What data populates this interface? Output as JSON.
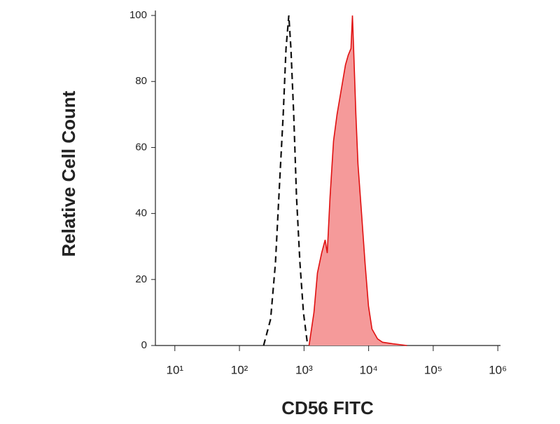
{
  "chart_data": {
    "type": "line",
    "xlabel": "CD56 FITC",
    "ylabel": "Relative Cell Count",
    "xscale": "log",
    "xlim": [
      5,
      1100000
    ],
    "ylim": [
      0,
      101.5
    ],
    "xticks": [
      {
        "value": 10,
        "label": "10¹"
      },
      {
        "value": 100,
        "label": "10²"
      },
      {
        "value": 1000,
        "label": "10³"
      },
      {
        "value": 10000,
        "label": "10⁴"
      },
      {
        "value": 100000,
        "label": "10⁵"
      },
      {
        "value": 1000000,
        "label": "10⁶"
      }
    ],
    "yticks": [
      0,
      20,
      40,
      60,
      80,
      100
    ],
    "series": [
      {
        "color": "#111111",
        "line_style": "dashed",
        "filled": false,
        "x": [
          237,
          304,
          361,
          420,
          476,
          526,
          581,
          626,
          692,
          764,
          865,
          980,
          1138
        ],
        "values": [
          0,
          8,
          25,
          50,
          70,
          90,
          100,
          90,
          70,
          45,
          25,
          10,
          0
        ]
      },
      {
        "color": "#e01010",
        "fill_color": "#f59a9a",
        "line_style": "solid",
        "filled": true,
        "x": [
          1197,
          1425,
          1614,
          1875,
          2124,
          2286,
          2529,
          2864,
          3243,
          3581,
          3956,
          4375,
          4831,
          5333,
          5610,
          5902,
          6353,
          6839,
          7762,
          8790,
          9954,
          11270,
          13770,
          16370,
          23820,
          39180
        ],
        "values": [
          0,
          10,
          22,
          28,
          32,
          28,
          45,
          62,
          70,
          75,
          80,
          85,
          88,
          90,
          100,
          88,
          70,
          55,
          40,
          25,
          12,
          5,
          2,
          1,
          0.5,
          0
        ]
      }
    ]
  }
}
